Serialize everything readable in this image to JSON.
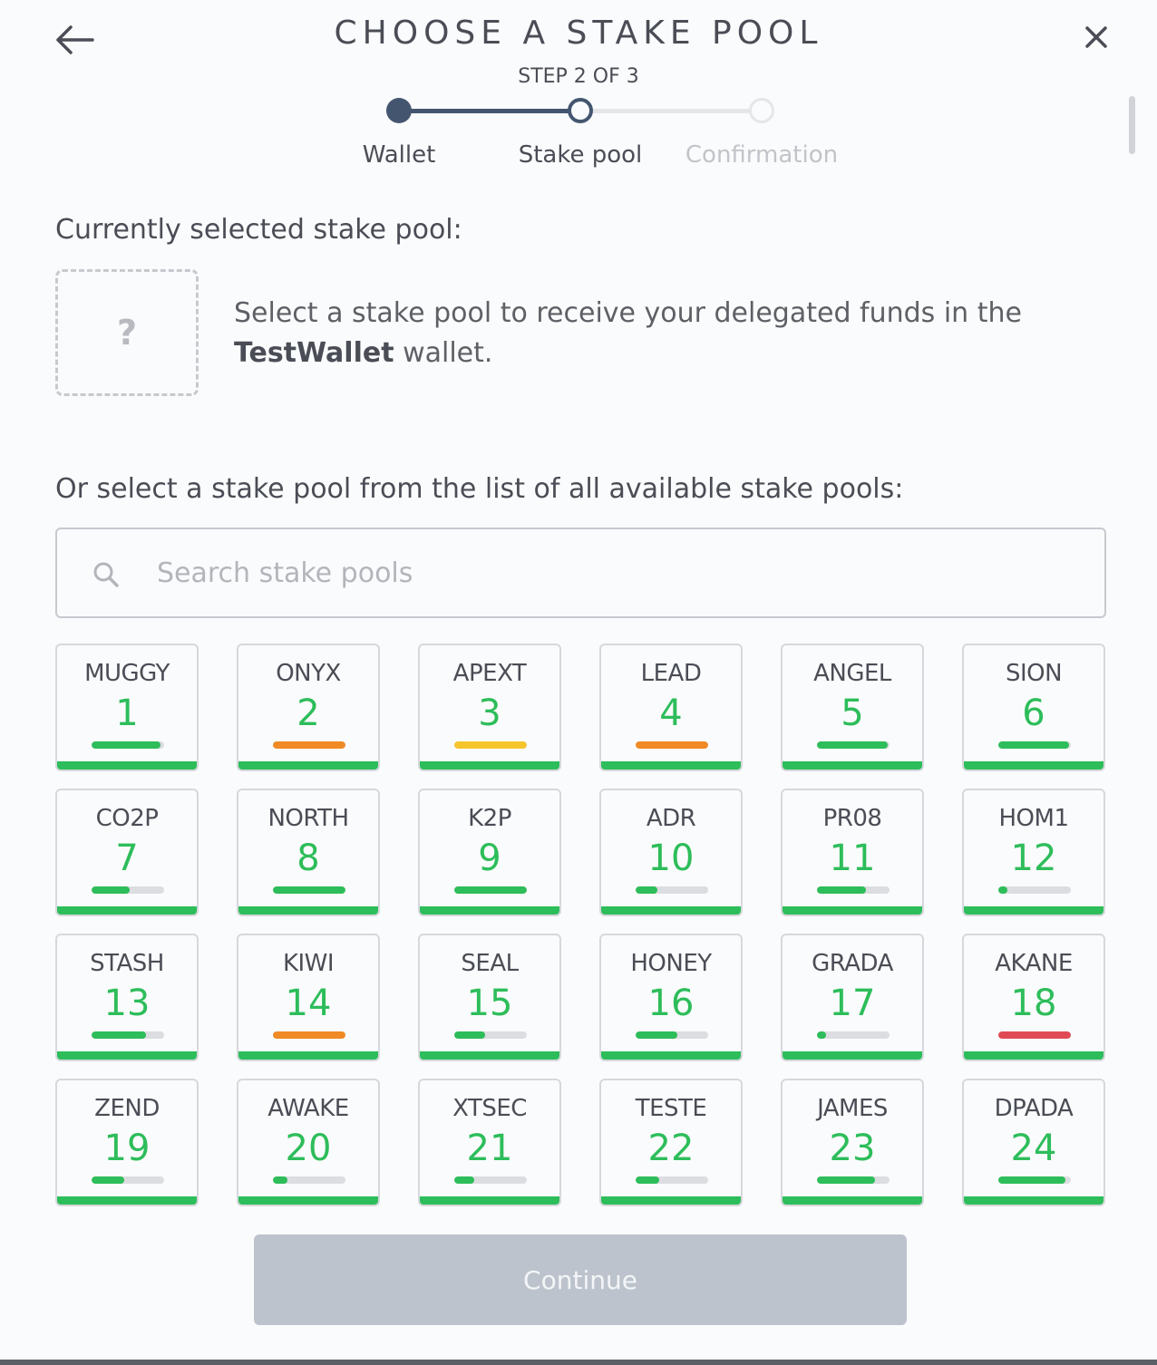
{
  "header": {
    "title": "CHOOSE A STAKE POOL",
    "step_label": "STEP 2 OF 3"
  },
  "stepper": {
    "steps": [
      {
        "label": "Wallet",
        "state": "completed"
      },
      {
        "label": "Stake pool",
        "state": "current"
      },
      {
        "label": "Confirmation",
        "state": "upcoming"
      }
    ],
    "colors": {
      "active": "#44566f",
      "inactive": "#e4e6ea",
      "inactive_text": "#c2c4c9"
    }
  },
  "selected": {
    "label": "Currently selected stake pool:",
    "placeholder_symbol": "?",
    "message_prefix": "Select a stake pool to receive your delegated funds in the",
    "wallet_name": "TestWallet",
    "message_suffix": "wallet."
  },
  "list": {
    "label": "Or select a stake pool from the list of all available stake pools:"
  },
  "search": {
    "placeholder": "Search stake pools",
    "value": ""
  },
  "colors": {
    "green": "#2dbd5a",
    "orange": "#f08a24",
    "yellow": "#f5c52b",
    "red": "#e04a55",
    "track": "#dcdde1"
  },
  "pools": [
    {
      "ticker": "MUGGY",
      "rank": "1",
      "saturation": 0.95,
      "color": "green"
    },
    {
      "ticker": "ONYX",
      "rank": "2",
      "saturation": 1.0,
      "color": "orange"
    },
    {
      "ticker": "APEXT",
      "rank": "3",
      "saturation": 1.0,
      "color": "yellow"
    },
    {
      "ticker": "LEAD",
      "rank": "4",
      "saturation": 1.0,
      "color": "orange"
    },
    {
      "ticker": "ANGEL",
      "rank": "5",
      "saturation": 0.97,
      "color": "green"
    },
    {
      "ticker": "SION",
      "rank": "6",
      "saturation": 0.97,
      "color": "green"
    },
    {
      "ticker": "CO2P",
      "rank": "7",
      "saturation": 0.52,
      "color": "green"
    },
    {
      "ticker": "NORTH",
      "rank": "8",
      "saturation": 1.0,
      "color": "green"
    },
    {
      "ticker": "K2P",
      "rank": "9",
      "saturation": 1.0,
      "color": "green"
    },
    {
      "ticker": "ADR",
      "rank": "10",
      "saturation": 0.3,
      "color": "green"
    },
    {
      "ticker": "PR08",
      "rank": "11",
      "saturation": 0.67,
      "color": "green"
    },
    {
      "ticker": "HOM1",
      "rank": "12",
      "saturation": 0.12,
      "color": "green"
    },
    {
      "ticker": "STASH",
      "rank": "13",
      "saturation": 0.75,
      "color": "green"
    },
    {
      "ticker": "KIWI",
      "rank": "14",
      "saturation": 1.0,
      "color": "orange"
    },
    {
      "ticker": "SEAL",
      "rank": "15",
      "saturation": 0.42,
      "color": "green"
    },
    {
      "ticker": "HONEY",
      "rank": "16",
      "saturation": 0.57,
      "color": "green"
    },
    {
      "ticker": "GRADA",
      "rank": "17",
      "saturation": 0.12,
      "color": "green"
    },
    {
      "ticker": "AKANE",
      "rank": "18",
      "saturation": 1.0,
      "color": "red"
    },
    {
      "ticker": "ZEND",
      "rank": "19",
      "saturation": 0.45,
      "color": "green"
    },
    {
      "ticker": "AWAKE",
      "rank": "20",
      "saturation": 0.2,
      "color": "green"
    },
    {
      "ticker": "XTSEC",
      "rank": "21",
      "saturation": 0.28,
      "color": "green"
    },
    {
      "ticker": "TESTE",
      "rank": "22",
      "saturation": 0.32,
      "color": "green"
    },
    {
      "ticker": "JAMES",
      "rank": "23",
      "saturation": 0.8,
      "color": "green"
    },
    {
      "ticker": "DPADA",
      "rank": "24",
      "saturation": 0.92,
      "color": "green"
    }
  ],
  "footer": {
    "continue_label": "Continue"
  }
}
